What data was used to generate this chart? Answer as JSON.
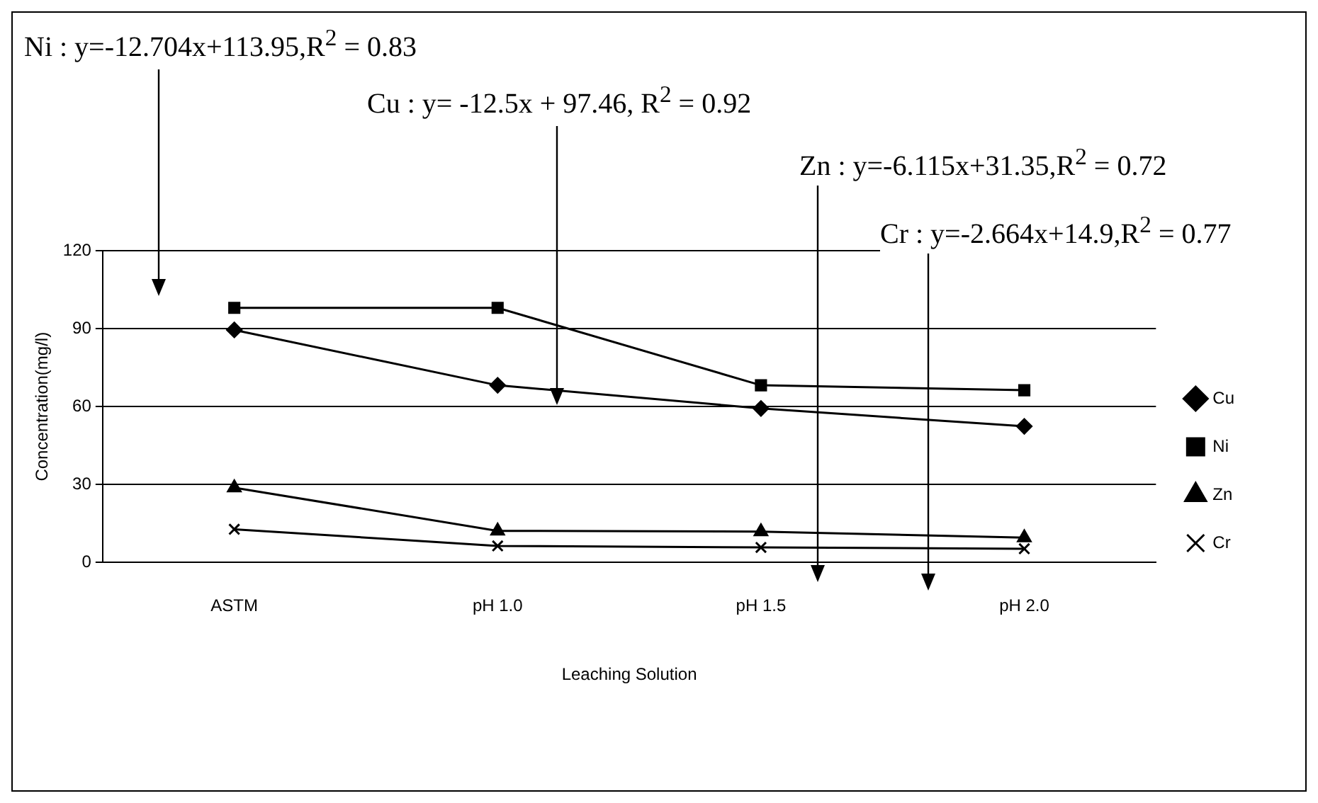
{
  "chart_data": {
    "type": "line",
    "xlabel": "Leaching Solution",
    "ylabel": "Concentration(mg/l)",
    "categories": [
      "ASTM",
      "pH 1.0",
      "pH 1.5",
      "pH 2.0"
    ],
    "series": [
      {
        "name": "Cu",
        "color": "#000000",
        "marker": "diamond",
        "values": [
          89.5,
          68.2,
          59.3,
          52.4
        ]
      },
      {
        "name": "Ni",
        "color": "#000000",
        "marker": "square",
        "values": [
          98,
          98,
          68.2,
          66.3
        ]
      },
      {
        "name": "Zn",
        "color": "#000000",
        "marker": "triangle",
        "values": [
          28.8,
          12.2,
          11.9,
          9.6
        ]
      },
      {
        "name": "Cr",
        "color": "#000000",
        "marker": "cross",
        "values": [
          12.8,
          6.4,
          5.8,
          5.3
        ]
      }
    ],
    "ylim": [
      0,
      120
    ],
    "yticks": [
      0,
      30,
      60,
      90,
      120
    ],
    "grid": "y",
    "legend": "right",
    "annotations": [
      "Ni : y=-12.704x+113.95,R$^{2}$ = 0.83",
      "Cu : y= -12.5x + 97.46, R$^{2}$ = 0.92",
      "Zn : y=-6.115x+31.35,R$^{2}$ = 0.72",
      "Cr : y=-2.664x+14.9,R$^{2}$ = 0.77"
    ]
  }
}
